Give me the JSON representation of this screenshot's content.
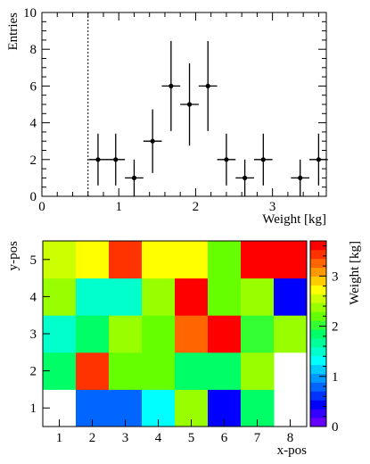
{
  "chart_data": [
    {
      "type": "scatter",
      "xlabel": "Weight [kg]",
      "ylabel": "Entries",
      "xlim": [
        0,
        3.7
      ],
      "ylim": [
        0,
        10
      ],
      "x_ticks": [
        "0",
        "1",
        "2",
        "3"
      ],
      "y_ticks": [
        "0",
        "2",
        "4",
        "6",
        "8",
        "10"
      ],
      "cut_line_x": 0.6,
      "cut_line_style": "dotted",
      "bin_half_width": 0.12,
      "points": [
        {
          "x": 0.73,
          "y": 2,
          "err": 1.41
        },
        {
          "x": 0.96,
          "y": 2,
          "err": 1.41
        },
        {
          "x": 1.2,
          "y": 1,
          "err": 1.0
        },
        {
          "x": 1.44,
          "y": 3,
          "err": 1.73
        },
        {
          "x": 1.68,
          "y": 6,
          "err": 2.45
        },
        {
          "x": 1.92,
          "y": 5,
          "err": 2.24
        },
        {
          "x": 2.16,
          "y": 6,
          "err": 2.45
        },
        {
          "x": 2.4,
          "y": 2,
          "err": 1.41
        },
        {
          "x": 2.64,
          "y": 1,
          "err": 1.0
        },
        {
          "x": 2.88,
          "y": 2,
          "err": 1.41
        },
        {
          "x": 3.36,
          "y": 1,
          "err": 1.0
        },
        {
          "x": 3.6,
          "y": 2,
          "err": 1.41
        }
      ]
    },
    {
      "type": "heatmap",
      "xlabel": "x-pos",
      "ylabel": "y-pos",
      "zlabel": "Weight [kg]",
      "x_ticks": [
        "1",
        "2",
        "3",
        "4",
        "5",
        "6",
        "7",
        "8"
      ],
      "y_ticks": [
        "1",
        "2",
        "3",
        "4",
        "5"
      ],
      "z_ticks": [
        "0",
        "1",
        "2",
        "3"
      ],
      "zlim": [
        0,
        3.7
      ],
      "rows_bottom_to_top": [
        [
          null,
          0.75,
          0.8,
          1.35,
          2.3,
          0.4,
          1.9,
          null
        ],
        [
          1.85,
          3.5,
          2.2,
          2.2,
          1.8,
          1.8,
          2.3,
          null
        ],
        [
          1.5,
          1.9,
          2.45,
          2.15,
          3.2,
          3.65,
          1.95,
          2.4
        ],
        [
          2.3,
          1.55,
          1.55,
          2.35,
          3.65,
          2.15,
          2.35,
          0.45
        ],
        [
          2.5,
          2.8,
          3.45,
          2.8,
          2.65,
          2.2,
          3.65,
          3.65
        ]
      ],
      "palette": [
        "#6600ff",
        "#3300ff",
        "#0000ff",
        "#0033ff",
        "#0066ff",
        "#0099ff",
        "#00ccff",
        "#00ffff",
        "#00ffcc",
        "#00ff99",
        "#00ff66",
        "#33ff33",
        "#66ff00",
        "#99ff00",
        "#ccff00",
        "#ffff00",
        "#ffcc00",
        "#ff9900",
        "#ff6600",
        "#ff3300",
        "#ff0000"
      ]
    }
  ]
}
